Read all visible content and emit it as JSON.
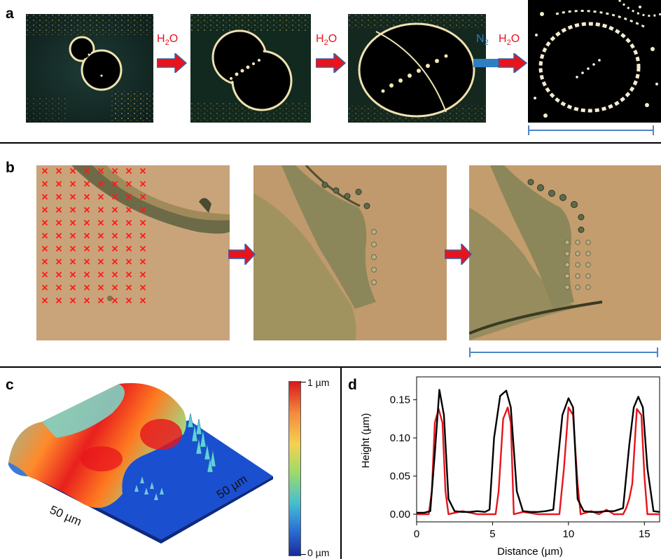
{
  "panels": {
    "a": {
      "label": "a",
      "steps": [
        {
          "kind": "h2o",
          "text": "H",
          "sub": "2",
          "tail": "O"
        },
        {
          "kind": "h2o",
          "text": "H",
          "sub": "2",
          "tail": "O"
        },
        {
          "kind": "n2h2o",
          "n_text": "N",
          "n_sub": "2",
          "text": "H",
          "sub": "2",
          "tail": "O"
        }
      ]
    },
    "b": {
      "label": "b"
    },
    "c": {
      "label": "c",
      "colorbar": {
        "top": "1 µm",
        "bottom": "0 µm"
      },
      "axis_x": "50 µm",
      "axis_y": "50 µm"
    },
    "d": {
      "label": "d"
    }
  },
  "colors": {
    "arrow_red": "#e8141c",
    "arrow_outline": "#3b5ea8",
    "n2_blue": "#2e7fc1",
    "scale_blue": "#4f86c6",
    "curve_red": "#e8141c",
    "curve_black": "#000000"
  },
  "chart_data": {
    "type": "line",
    "xlabel": "Distance (µm)",
    "ylabel": "Height (µm)",
    "xlim": [
      0,
      16
    ],
    "ylim": [
      -0.01,
      0.18
    ],
    "xticks": [
      0,
      5,
      10,
      15
    ],
    "yticks": [
      0.0,
      0.05,
      0.1,
      0.15
    ],
    "ytick_labels": [
      "0.00",
      "0.05",
      "0.10",
      "0.15"
    ],
    "series": [
      {
        "color": "#000000",
        "x": [
          0,
          0.5,
          0.9,
          1.2,
          1.5,
          1.8,
          2.1,
          2.5,
          3,
          3.5,
          4,
          4.5,
          4.8,
          5.1,
          5.5,
          5.9,
          6.2,
          6.6,
          7.0,
          7.5,
          8,
          8.5,
          9.0,
          9.3,
          9.6,
          10.0,
          10.3,
          10.6,
          11.0,
          11.5,
          12,
          12.5,
          13,
          13.6,
          14.0,
          14.3,
          14.6,
          14.9,
          15.2,
          15.6,
          16
        ],
        "y": [
          0.002,
          0.002,
          0.004,
          0.08,
          0.163,
          0.13,
          0.02,
          0.004,
          0.003,
          0.003,
          0.004,
          0.003,
          0.006,
          0.1,
          0.155,
          0.162,
          0.14,
          0.03,
          0.004,
          0.003,
          0.003,
          0.004,
          0.006,
          0.07,
          0.13,
          0.152,
          0.14,
          0.02,
          0.004,
          0.003,
          0.003,
          0.004,
          0.004,
          0.008,
          0.09,
          0.14,
          0.154,
          0.14,
          0.06,
          0.004,
          0.003
        ]
      },
      {
        "color": "#e8141c",
        "x": [
          0,
          0.8,
          1.0,
          1.2,
          1.45,
          1.7,
          1.9,
          2.1,
          3,
          4,
          5.2,
          5.4,
          5.7,
          6.0,
          6.2,
          6.4,
          7,
          8,
          9.4,
          9.7,
          10.0,
          10.3,
          10.6,
          10.8,
          11.5,
          12,
          12.5,
          13,
          13.6,
          13.8,
          14.0,
          14.2,
          14.5,
          14.8,
          15.0,
          15.2,
          16
        ],
        "y": [
          0.0,
          0.0,
          0.03,
          0.12,
          0.138,
          0.12,
          0.03,
          0.0,
          0.004,
          0.0,
          0.0,
          0.03,
          0.125,
          0.14,
          0.12,
          0.0,
          0.003,
          0.0,
          0.0,
          0.06,
          0.14,
          0.13,
          0.04,
          0.0,
          0.004,
          0.0,
          0.006,
          0.0,
          0.0,
          0.008,
          0.02,
          0.04,
          0.138,
          0.13,
          0.05,
          0.0,
          0.0
        ]
      }
    ]
  }
}
